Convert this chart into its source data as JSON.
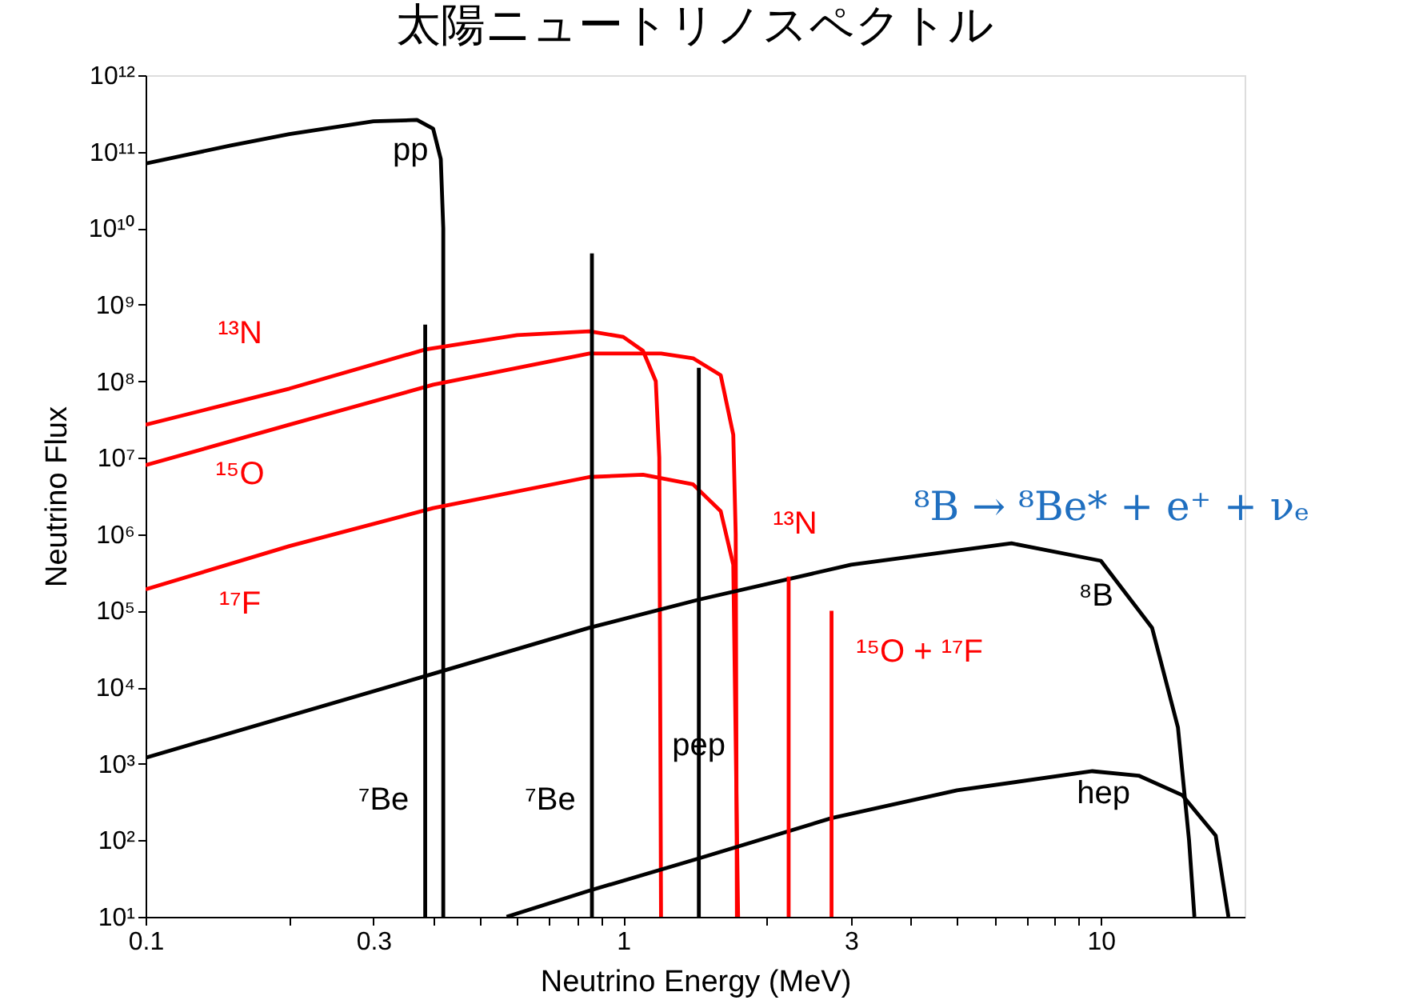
{
  "chart_data": {
    "type": "line",
    "title": "太陽ニュートリノスペクトル",
    "xlabel": "Neutrino Energy (MeV)",
    "ylabel": "Neutrino Flux",
    "log": "xy",
    "grid": false,
    "marker": "none",
    "line_style": "solid",
    "xlim": [
      0.1,
      20
    ],
    "ylim": [
      10,
      1000000000000.0
    ],
    "xticks": [
      0.1,
      {
        "value": 0.2,
        "label": null
      },
      0.3,
      {
        "value": 0.4,
        "label": null
      },
      {
        "value": 0.5,
        "label": null
      },
      {
        "value": 0.6,
        "label": null
      },
      {
        "value": 0.7,
        "label": null
      },
      {
        "value": 0.8,
        "label": null
      },
      {
        "value": 0.9,
        "label": null
      },
      1,
      {
        "value": 2,
        "label": null
      },
      3,
      {
        "value": 4,
        "label": null
      },
      {
        "value": 5,
        "label": null
      },
      {
        "value": 6,
        "label": null
      },
      {
        "value": 7,
        "label": null
      },
      {
        "value": 8,
        "label": null
      },
      {
        "value": 9,
        "label": null
      },
      10
    ],
    "yticks": [
      {
        "value": 10,
        "label": "10¹"
      },
      {
        "value": 100,
        "label": "10²"
      },
      {
        "value": 1000,
        "label": "10³"
      },
      {
        "value": 10000,
        "label": "10⁴"
      },
      {
        "value": 100000,
        "label": "10⁵"
      },
      {
        "value": 1000000,
        "label": "10⁶"
      },
      {
        "value": 10000000,
        "label": "10⁷"
      },
      {
        "value": 100000000,
        "label": "10⁸"
      },
      {
        "value": 1000000000,
        "label": "10⁹"
      },
      {
        "value": 10000000000,
        "label": "10¹⁰"
      },
      {
        "value": 100000000000,
        "label": "10¹¹"
      },
      {
        "value": 1000000000000,
        "label": "10¹²"
      }
    ],
    "series": [
      {
        "name": "pp",
        "color": "#000000",
        "x": [
          0.1,
          0.15,
          0.2,
          0.3,
          0.37,
          0.4,
          0.415,
          0.42,
          0.42
        ],
        "values": [
          70000000000.0,
          120000000000.0,
          170000000000.0,
          250000000000.0,
          260000000000.0,
          200000000000.0,
          80000000000.0,
          10000000000.0,
          10
        ]
      },
      {
        "name": "¹³N",
        "color": "#ff0000",
        "x": [
          0.1,
          0.2,
          0.385,
          0.6,
          0.85,
          1.0,
          1.1,
          1.17,
          1.19,
          1.2
        ],
        "values": [
          27000000.0,
          80000000.0,
          260000000.0,
          400000000.0,
          450000000.0,
          380000000.0,
          250000000.0,
          100000000.0,
          10000000.0,
          10
        ]
      },
      {
        "name": "¹⁵O",
        "color": "#ff0000",
        "x": [
          0.1,
          0.2,
          0.4,
          0.85,
          1.2,
          1.4,
          1.6,
          1.7,
          1.72,
          1.73
        ],
        "values": [
          8000000.0,
          27000000.0,
          90000000.0,
          230000000.0,
          230000000.0,
          200000000.0,
          120000000.0,
          20000000.0,
          1000000.0,
          10
        ]
      },
      {
        "name": "¹⁷F",
        "color": "#ff0000",
        "x": [
          0.1,
          0.2,
          0.4,
          0.85,
          1.1,
          1.4,
          1.6,
          1.7,
          1.74
        ],
        "values": [
          190000.0,
          700000.0,
          2200000.0,
          5600000.0,
          6000000.0,
          4500000.0,
          2000000.0,
          400000.0,
          10
        ]
      },
      {
        "name": "⁸B",
        "color": "#000000",
        "x": [
          0.1,
          0.385,
          0.85,
          1.44,
          3,
          6.5,
          10,
          12.8,
          14.5,
          15.3,
          15.7
        ],
        "values": [
          1200.0,
          14000.0,
          60000.0,
          140000.0,
          400000.0,
          760000.0,
          450000.0,
          60000.0,
          3000.0,
          100,
          10
        ]
      },
      {
        "name": "hep",
        "color": "#000000",
        "x": [
          0.57,
          0.85,
          1.44,
          2.73,
          5,
          9.6,
          12,
          14.8,
          17.4,
          18.5
        ],
        "values": [
          10,
          22,
          58,
          195,
          450,
          800,
          700,
          390,
          115,
          10
        ]
      },
      {
        "name": "⁷Be",
        "color": "#000000",
        "x": [
          0.385,
          0.385
        ],
        "values": [
          10,
          550000000.0
        ]
      },
      {
        "name": "⁷Be",
        "color": "#000000",
        "x": [
          0.86,
          0.86
        ],
        "values": [
          10,
          4700000000.0
        ]
      },
      {
        "name": "pep",
        "color": "#000000",
        "x": [
          1.44,
          1.44
        ],
        "values": [
          10,
          150000000.0
        ]
      },
      {
        "name": "¹³N",
        "color": "#ff0000",
        "x": [
          2.22,
          2.22
        ],
        "values": [
          10,
          280000.0
        ]
      },
      {
        "name": "¹⁵O + ¹⁷F",
        "color": "#ff0000",
        "x": [
          2.73,
          2.73
        ],
        "values": [
          10,
          100000.0
        ]
      }
    ],
    "annotations": [
      "⁸B → ⁸Be* + e⁺ + νₑ"
    ]
  }
}
